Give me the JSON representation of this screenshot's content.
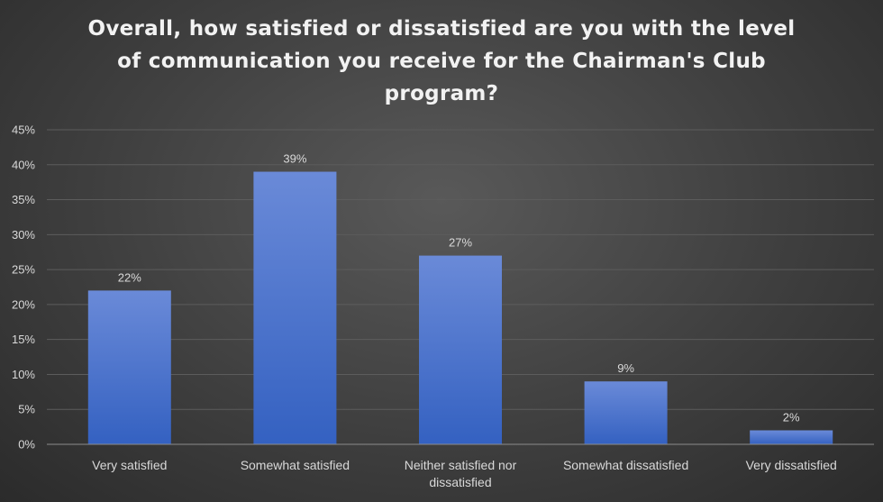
{
  "chart_data": {
    "type": "bar",
    "title": "Overall, how satisfied or dissatisfied are you with the level of communication you receive for the Chairman's Club program?",
    "categories": [
      [
        "Very satisfied"
      ],
      [
        "Somewhat satisfied"
      ],
      [
        "Neither satisfied nor",
        "dissatisfied"
      ],
      [
        "Somewhat dissatisfied"
      ],
      [
        "Very dissatisfied"
      ]
    ],
    "values": [
      22,
      39,
      27,
      9,
      2
    ],
    "value_labels": [
      "22%",
      "39%",
      "27%",
      "9%",
      "2%"
    ],
    "y_ticks": [
      0,
      5,
      10,
      15,
      20,
      25,
      30,
      35,
      40,
      45
    ],
    "y_tick_labels": [
      "0%",
      "5%",
      "10%",
      "15%",
      "20%",
      "25%",
      "30%",
      "35%",
      "40%",
      "45%"
    ],
    "ylim": [
      0,
      45
    ],
    "grid": true,
    "legend": "none",
    "colors": {
      "bar_top": "#6a8ad8",
      "bar_bottom": "#3461c1",
      "gridline": "#5c5c5c",
      "axis": "#8c8c8c",
      "text": "#d9d9d9",
      "title": "#f2f2f2"
    }
  }
}
